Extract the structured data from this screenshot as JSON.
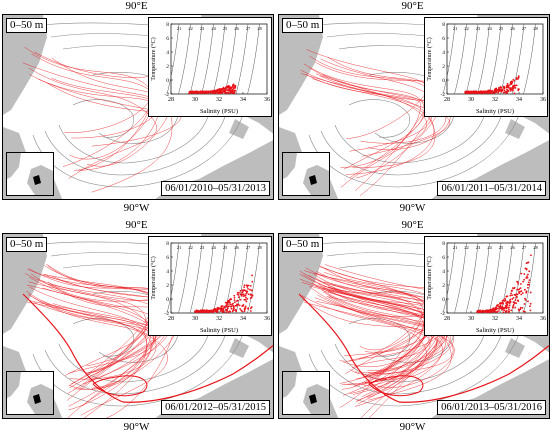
{
  "panels": [
    {
      "id": "p1",
      "depth": "0–50 m",
      "date_range": "06/01/2010–05/31/2013",
      "top_label": "90°E",
      "bottom_label": "90°W",
      "ts_cloud": {
        "sal_min": 29.5,
        "sal_max": 33.4,
        "t_max": -0.3,
        "t_min": -1.9
      }
    },
    {
      "id": "p2",
      "depth": "0–50 m",
      "date_range": "06/01/2011–05/31/2014",
      "top_label": "90°E",
      "bottom_label": "90°W",
      "ts_cloud": {
        "sal_min": 29.5,
        "sal_max": 34.0,
        "t_max": 0.6,
        "t_min": -1.9
      }
    },
    {
      "id": "p3",
      "depth": "0–50 m",
      "date_range": "06/01/2012–05/31/2015",
      "top_label": "90°E",
      "bottom_label": "90°W",
      "ts_cloud": {
        "sal_min": 30.0,
        "sal_max": 34.8,
        "t_max": 3.6,
        "t_min": -1.9
      }
    },
    {
      "id": "p4",
      "depth": "0–50 m",
      "date_range": "06/01/2013–05/31/2016",
      "top_label": "90°E",
      "bottom_label": "90°W",
      "ts_cloud": {
        "sal_min": 30.5,
        "sal_max": 35.0,
        "t_max": 6.8,
        "t_min": -1.9
      }
    }
  ],
  "ts_diagram": {
    "xlabel": "Salinity (PSU)",
    "ylabel": "Temperature (°C)",
    "x_ticks": [
      "28",
      "30",
      "32",
      "34",
      "36"
    ],
    "y_ticks": [
      "8",
      "6",
      "4",
      "2",
      "0",
      "-2"
    ],
    "isopycnal_labels": [
      "21",
      "22",
      "23",
      "24",
      "25",
      "26",
      "27",
      "28"
    ]
  },
  "colors": {
    "trajectory": "#e8141a",
    "land": "#bdbdbd",
    "bathymetry": "#8a8a8a"
  }
}
